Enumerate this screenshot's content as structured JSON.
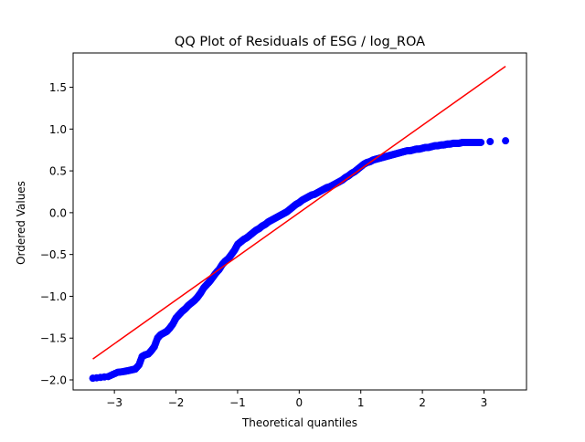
{
  "chart_data": {
    "type": "scatter",
    "title": "QQ Plot of Residuals of ESG / log_ROA",
    "xlabel": "Theoretical quantiles",
    "ylabel": "Ordered Values",
    "xlim": [
      -3.67,
      3.69
    ],
    "ylim": [
      -2.12,
      1.91
    ],
    "xticks": [
      -3,
      -2,
      -1,
      0,
      1,
      2,
      3
    ],
    "yticks": [
      -2.0,
      -1.5,
      -1.0,
      -0.5,
      0.0,
      0.5,
      1.0,
      1.5
    ],
    "xtick_labels": [
      "−3",
      "−2",
      "−1",
      "0",
      "1",
      "2",
      "3"
    ],
    "ytick_labels": [
      "−2.0",
      "−1.5",
      "−1.0",
      "−0.5",
      "0.0",
      "0.5",
      "1.0",
      "1.5"
    ],
    "grid": false,
    "point_color": "#0000ff",
    "line_color": "#ff0000",
    "fit_line": {
      "x": [
        -3.35,
        3.35
      ],
      "y": [
        -1.75,
        1.75
      ]
    },
    "points": {
      "x": [
        -3.35,
        -3.1,
        -2.95,
        -2.85,
        -2.78,
        -2.72,
        -2.66,
        -2.6,
        -2.55,
        -2.5,
        -2.45,
        -2.4,
        -2.35,
        -2.3,
        -2.25,
        -2.2,
        -2.15,
        -2.1,
        -2.05,
        -2.0,
        -1.95,
        -1.9,
        -1.85,
        -1.8,
        -1.75,
        -1.7,
        -1.65,
        -1.6,
        -1.55,
        -1.5,
        -1.45,
        -1.4,
        -1.35,
        -1.3,
        -1.25,
        -1.2,
        -1.15,
        -1.1,
        -1.05,
        -1.0,
        -0.95,
        -0.9,
        -0.85,
        -0.8,
        -0.75,
        -0.7,
        -0.65,
        -0.6,
        -0.55,
        -0.5,
        -0.45,
        -0.4,
        -0.35,
        -0.3,
        -0.25,
        -0.2,
        -0.15,
        -0.1,
        -0.05,
        0.0,
        0.05,
        0.1,
        0.15,
        0.2,
        0.25,
        0.3,
        0.35,
        0.4,
        0.45,
        0.5,
        0.55,
        0.6,
        0.65,
        0.7,
        0.75,
        0.8,
        0.85,
        0.9,
        0.95,
        1.0,
        1.05,
        1.1,
        1.15,
        1.2,
        1.25,
        1.3,
        1.35,
        1.4,
        1.45,
        1.5,
        1.55,
        1.6,
        1.65,
        1.7,
        1.75,
        1.8,
        1.85,
        1.9,
        1.95,
        2.0,
        2.05,
        2.1,
        2.15,
        2.2,
        2.25,
        2.3,
        2.35,
        2.4,
        2.45,
        2.5,
        2.55,
        2.6,
        2.65,
        2.7,
        2.75,
        2.8,
        2.85,
        2.9,
        2.95,
        3.1,
        3.35
      ],
      "y": [
        -1.98,
        -1.96,
        -1.91,
        -1.9,
        -1.89,
        -1.88,
        -1.87,
        -1.82,
        -1.72,
        -1.7,
        -1.69,
        -1.65,
        -1.6,
        -1.5,
        -1.46,
        -1.44,
        -1.42,
        -1.38,
        -1.33,
        -1.26,
        -1.22,
        -1.18,
        -1.15,
        -1.11,
        -1.08,
        -1.05,
        -1.01,
        -0.96,
        -0.9,
        -0.86,
        -0.82,
        -0.77,
        -0.72,
        -0.68,
        -0.62,
        -0.58,
        -0.55,
        -0.5,
        -0.45,
        -0.38,
        -0.35,
        -0.32,
        -0.3,
        -0.27,
        -0.24,
        -0.21,
        -0.19,
        -0.16,
        -0.14,
        -0.11,
        -0.09,
        -0.07,
        -0.05,
        -0.03,
        -0.01,
        0.01,
        0.04,
        0.07,
        0.1,
        0.12,
        0.15,
        0.17,
        0.19,
        0.21,
        0.22,
        0.24,
        0.26,
        0.28,
        0.3,
        0.31,
        0.33,
        0.35,
        0.37,
        0.39,
        0.42,
        0.44,
        0.47,
        0.49,
        0.52,
        0.55,
        0.58,
        0.6,
        0.61,
        0.63,
        0.64,
        0.65,
        0.66,
        0.67,
        0.68,
        0.69,
        0.7,
        0.71,
        0.72,
        0.73,
        0.74,
        0.74,
        0.75,
        0.76,
        0.76,
        0.77,
        0.78,
        0.78,
        0.79,
        0.8,
        0.8,
        0.81,
        0.81,
        0.82,
        0.82,
        0.83,
        0.83,
        0.83,
        0.84,
        0.84,
        0.84,
        0.84,
        0.84,
        0.84,
        0.84,
        0.85,
        0.86
      ]
    }
  }
}
